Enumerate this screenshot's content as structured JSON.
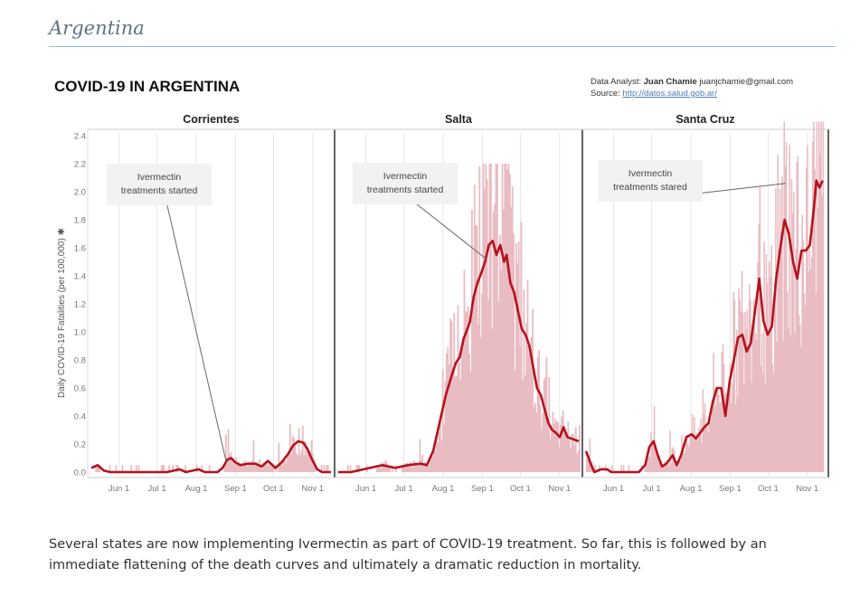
{
  "page": {
    "section_title": "Argentina",
    "caption": "Several states are now implementing Ivermectin as part of COVID-19 treatment. So far, this is followed by an immediate flattening of the death curves and ultimately a dramatic reduction in mortality."
  },
  "chart_data": {
    "type": "line",
    "title": "COVID-19 IN ARGENTINA",
    "credit": {
      "analyst_prefix": "Data Analyst:",
      "analyst_name": "Juan Chamie",
      "analyst_email": "juanjchamie@gmail.com",
      "source_prefix": "Source:",
      "source_url": "http://datos.salud.gob.ar/"
    },
    "ylabel": "Daily COVID-19 Fatalities (per 100,000) ✱",
    "ylim": [
      0,
      2.5
    ],
    "yticks": [
      "0.0",
      "0.2",
      "0.4",
      "0.6",
      "0.8",
      "1.0",
      "1.2",
      "1.4",
      "1.6",
      "1.8",
      "2.0",
      "2.2",
      "2.4"
    ],
    "xticks": [
      "Jun 1",
      "Jul 1",
      "Aug 1",
      "Sep 1",
      "Oct 1",
      "Nov 1"
    ],
    "xtick_days": [
      19,
      49,
      80,
      111,
      141,
      172
    ],
    "x_range_days": [
      0,
      195
    ],
    "colors": {
      "line": "#b5121b",
      "bars": "#e8bcc2",
      "panel_border": "#222222",
      "grid": "#e6e6e6"
    },
    "grid": true,
    "bar_series_note": "daily values shown as light bars, 7-day average shown as dark red line",
    "panels": [
      {
        "name": "Corrientes",
        "annotation": {
          "text_line1": "Ivermectin",
          "text_line2": "treatments started",
          "points_to_day": 107,
          "points_to_value": 0.07
        },
        "line": [
          [
            0,
            0.03
          ],
          [
            5,
            0.05
          ],
          [
            10,
            0.01
          ],
          [
            15,
            0.0
          ],
          [
            25,
            0.0
          ],
          [
            45,
            0.0
          ],
          [
            60,
            0.0
          ],
          [
            70,
            0.02
          ],
          [
            75,
            0.0
          ],
          [
            85,
            0.02
          ],
          [
            90,
            0.0
          ],
          [
            100,
            0.0
          ],
          [
            104,
            0.03
          ],
          [
            108,
            0.09
          ],
          [
            111,
            0.1
          ],
          [
            114,
            0.07
          ],
          [
            118,
            0.05
          ],
          [
            124,
            0.06
          ],
          [
            130,
            0.06
          ],
          [
            135,
            0.04
          ],
          [
            140,
            0.08
          ],
          [
            146,
            0.03
          ],
          [
            151,
            0.07
          ],
          [
            156,
            0.13
          ],
          [
            160,
            0.19
          ],
          [
            164,
            0.22
          ],
          [
            168,
            0.21
          ],
          [
            171,
            0.17
          ],
          [
            175,
            0.09
          ],
          [
            179,
            0.02
          ],
          [
            183,
            0.0
          ],
          [
            190,
            0.0
          ]
        ],
        "bar_max": 0.4
      },
      {
        "name": "Salta",
        "annotation": {
          "text_line1": "Ivermectin",
          "text_line2": "treatments started",
          "points_to_day": 117,
          "points_to_value": 1.52
        },
        "line": [
          [
            0,
            0.0
          ],
          [
            10,
            0.0
          ],
          [
            25,
            0.03
          ],
          [
            35,
            0.05
          ],
          [
            45,
            0.03
          ],
          [
            55,
            0.05
          ],
          [
            65,
            0.06
          ],
          [
            70,
            0.05
          ],
          [
            75,
            0.15
          ],
          [
            80,
            0.35
          ],
          [
            85,
            0.55
          ],
          [
            90,
            0.7
          ],
          [
            93,
            0.78
          ],
          [
            96,
            0.82
          ],
          [
            99,
            0.95
          ],
          [
            102,
            1.02
          ],
          [
            104,
            1.07
          ],
          [
            107,
            1.25
          ],
          [
            110,
            1.35
          ],
          [
            113,
            1.42
          ],
          [
            116,
            1.5
          ],
          [
            119,
            1.62
          ],
          [
            122,
            1.65
          ],
          [
            125,
            1.55
          ],
          [
            128,
            1.62
          ],
          [
            131,
            1.5
          ],
          [
            133,
            1.55
          ],
          [
            136,
            1.35
          ],
          [
            139,
            1.28
          ],
          [
            142,
            1.15
          ],
          [
            145,
            1.02
          ],
          [
            148,
            0.98
          ],
          [
            151,
            0.9
          ],
          [
            154,
            0.75
          ],
          [
            157,
            0.6
          ],
          [
            160,
            0.55
          ],
          [
            163,
            0.45
          ],
          [
            166,
            0.35
          ],
          [
            169,
            0.3
          ],
          [
            172,
            0.28
          ],
          [
            175,
            0.25
          ],
          [
            178,
            0.32
          ],
          [
            181,
            0.25
          ],
          [
            184,
            0.24
          ],
          [
            187,
            0.23
          ],
          [
            190,
            0.22
          ]
        ],
        "bar_max": 2.2
      },
      {
        "name": "Santa Cruz",
        "annotation": {
          "text_line1": "Ivermectin",
          "text_line2": "treatments stared",
          "points_to_day": 189,
          "points_to_value": 2.06
        },
        "line": [
          [
            0,
            0.15
          ],
          [
            5,
            0.05
          ],
          [
            8,
            0.0
          ],
          [
            14,
            0.02
          ],
          [
            20,
            0.02
          ],
          [
            24,
            0.0
          ],
          [
            40,
            0.0
          ],
          [
            50,
            0.0
          ],
          [
            56,
            0.05
          ],
          [
            60,
            0.18
          ],
          [
            64,
            0.22
          ],
          [
            68,
            0.12
          ],
          [
            72,
            0.04
          ],
          [
            76,
            0.06
          ],
          [
            82,
            0.12
          ],
          [
            86,
            0.05
          ],
          [
            90,
            0.12
          ],
          [
            95,
            0.25
          ],
          [
            100,
            0.27
          ],
          [
            104,
            0.24
          ],
          [
            108,
            0.28
          ],
          [
            112,
            0.32
          ],
          [
            116,
            0.35
          ],
          [
            120,
            0.5
          ],
          [
            124,
            0.6
          ],
          [
            128,
            0.6
          ],
          [
            132,
            0.4
          ],
          [
            136,
            0.65
          ],
          [
            140,
            0.8
          ],
          [
            144,
            0.96
          ],
          [
            148,
            0.98
          ],
          [
            152,
            0.86
          ],
          [
            156,
            0.92
          ],
          [
            160,
            1.15
          ],
          [
            164,
            1.38
          ],
          [
            168,
            1.08
          ],
          [
            172,
            0.98
          ],
          [
            176,
            1.04
          ],
          [
            180,
            1.38
          ],
          [
            184,
            1.6
          ],
          [
            188,
            1.8
          ],
          [
            192,
            1.7
          ],
          [
            196,
            1.5
          ],
          [
            200,
            1.38
          ],
          [
            204,
            1.58
          ],
          [
            208,
            1.58
          ],
          [
            212,
            1.62
          ],
          [
            216,
            1.9
          ],
          [
            218,
            2.08
          ],
          [
            221,
            2.03
          ],
          [
            224,
            2.08
          ]
        ],
        "bar_max": 2.5
      }
    ]
  }
}
